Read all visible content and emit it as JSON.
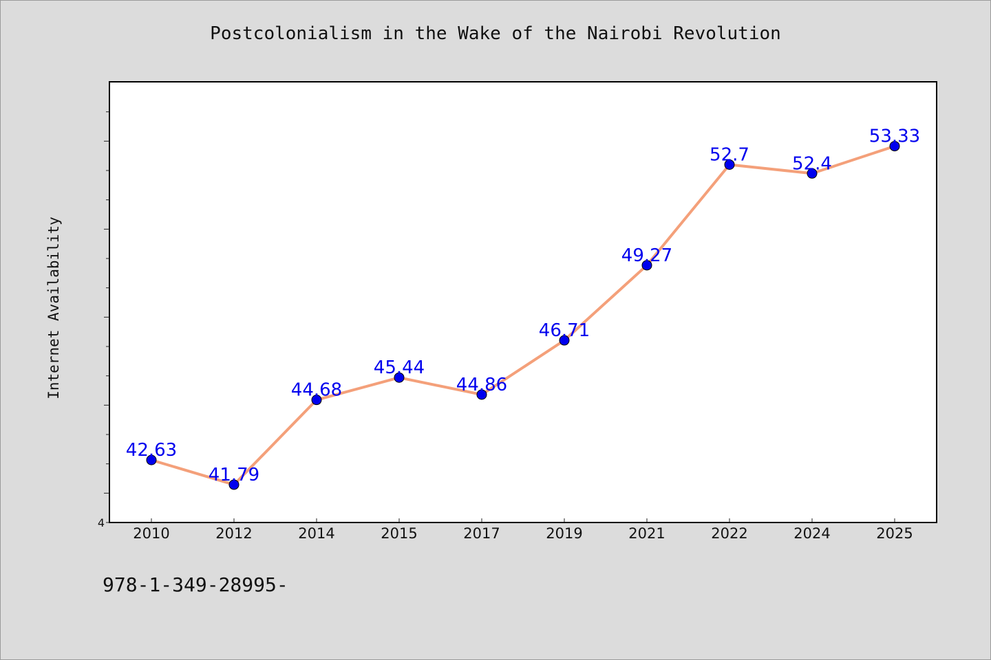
{
  "chart_data": {
    "type": "line",
    "title": "Postcolonialism in the Wake of the Nairobi Revolution",
    "xlabel": "",
    "ylabel": "Internet Availability",
    "categories": [
      "2010",
      "2012",
      "2014",
      "2015",
      "2017",
      "2019",
      "2021",
      "2022",
      "2024",
      "2025"
    ],
    "series": [
      {
        "values": [
          42.63,
          41.79,
          44.68,
          45.44,
          44.86,
          46.71,
          49.27,
          52.7,
          52.4,
          53.33
        ],
        "data_labels": [
          "42.63",
          "41.79",
          "44.68",
          "45.44",
          "44.86",
          "46.71",
          "49.27",
          "52.7",
          "52.4",
          "53.33"
        ]
      }
    ],
    "ylim": [
      40.5,
      55.5
    ],
    "y_ticks": [
      40.5,
      41.5,
      42.5,
      43.5,
      44.5,
      45.5,
      46.5,
      47.5,
      48.5,
      49.5,
      50.5,
      51.5,
      52.5,
      53.5,
      54.5
    ],
    "y_major_ticks": [
      41.5,
      44.5,
      47.5,
      50.5,
      53.5
    ],
    "y_tick_labels_shown": [
      "4"
    ],
    "grid": false,
    "legend": "none",
    "colors": {
      "line": "#f4a07a",
      "marker": "#0000ee",
      "label": "#0000ee"
    }
  },
  "footer": {
    "code": "978-1-349-28995-"
  }
}
